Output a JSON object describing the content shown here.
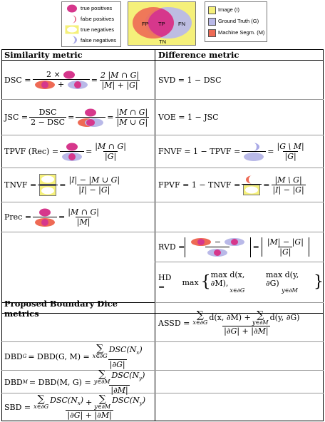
{
  "legend1": {
    "items": [
      "true positives",
      "false positives",
      "true negatives",
      "false negatives"
    ]
  },
  "venn": {
    "labels": [
      "FP",
      "TP",
      "FN",
      "TN"
    ]
  },
  "legend2": {
    "items": [
      "Image (I)",
      "Ground Truth (G)",
      "Machine Segm. (M)"
    ],
    "colors": [
      "#f5f07a",
      "#b9b9e8",
      "#ee6a55"
    ]
  },
  "table": {
    "headers": {
      "similarity": "Similarity metric",
      "difference": "Difference metric",
      "boundary": "Proposed Boundary Dice metrics"
    },
    "rows": {
      "dsc": "DSC =",
      "jsc": "JSC =",
      "tpvf": "TPVF (Rec) =",
      "tnvf": "TNVF =",
      "prec": "Prec =",
      "svd": "SVD = 1 − DSC",
      "voe": "VOE = 1 − JSC",
      "fnvf": "FNVF = 1 − TPVF =",
      "fpvf": "FPVF = 1 − TNVF =",
      "rvd": "RVD =",
      "hd": "HD =",
      "assd": "ASSD =",
      "dbdg": "DBD",
      "dbdg_rhs": "= DBD(G, M) =",
      "dbdm": "DBD",
      "dbdm_rhs": "= DBD(M, G) =",
      "sbd": "SBD ="
    },
    "math": {
      "two_times": "2 ×",
      "two": "2",
      "mg_and": "|M ∩ G|",
      "m_plus_g": "|M| + |G|",
      "mg_or": "|M ∪ G|",
      "dsc": "DSC",
      "two_minus_dsc": "2 − DSC",
      "g_abs": "|G|",
      "m_abs": "|M|",
      "i_minus_mug": "|I| − |M ∪ G|",
      "i_minus_g": "|I| − |G|",
      "g_minus_m": "|G \\ M|",
      "m_minus_g": "|M \\ G|",
      "rvd_num": "|M| − |G|",
      "hd_body": "max",
      "hd_a": "max d(x, ∂M),",
      "hd_b": "max d(y, ∂G)",
      "hd_sub_a": "x∈∂G",
      "hd_sub_b": "y∈∂M",
      "assd_num_a": "d(x, ∂M) +",
      "assd_num_b": "d(y, ∂G)",
      "boundary_den": "|∂G| + |∂M|",
      "dg": "|∂G|",
      "dm": "|∂M|",
      "dsc_nx": "DSC(N",
      "dsc_ny": "DSC(N",
      "x": "x",
      "y": "y",
      "sub_g": "G",
      "sub_m": "M",
      "sum_sub_x": "x∈∂G",
      "sum_sub_y": "y∈∂M",
      "plus": "+",
      "minus": "−",
      "eq": "="
    }
  }
}
